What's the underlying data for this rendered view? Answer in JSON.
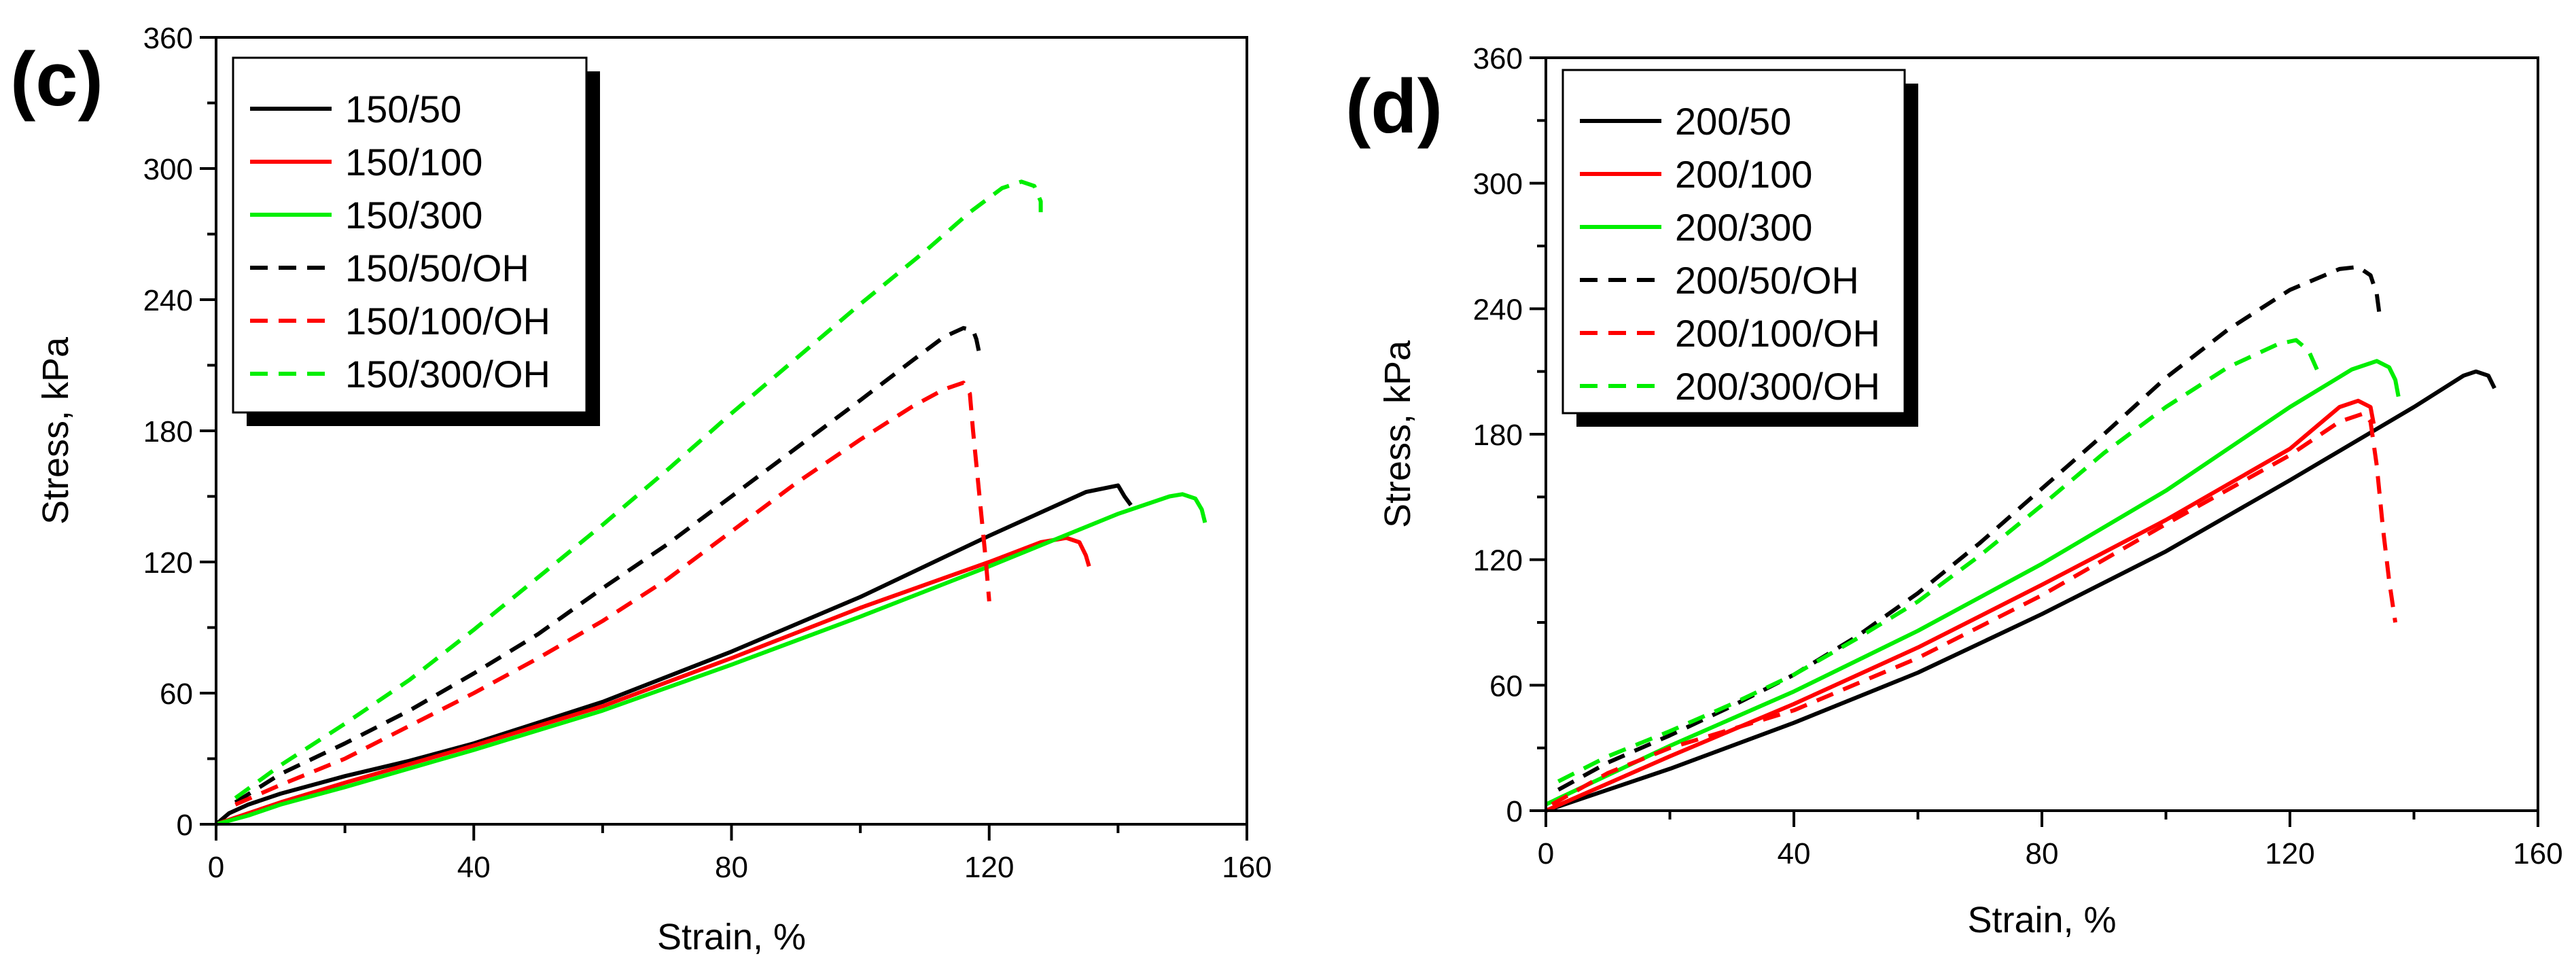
{
  "colors": {
    "black": "#000000",
    "red": "#ff0000",
    "green": "#00ee00"
  },
  "chart_data": [
    {
      "type": "line",
      "panel_label": "(c)",
      "xlabel": "Strain, %",
      "ylabel": "Stress, kPa",
      "xlim": [
        0,
        160
      ],
      "ylim": [
        0,
        360
      ],
      "xticks": [
        0,
        40,
        80,
        120,
        160
      ],
      "yticks": [
        0,
        60,
        120,
        180,
        240,
        300,
        360
      ],
      "legend_position": "top-left",
      "series": [
        {
          "name": "150/50",
          "color": "#000000",
          "dash": "solid",
          "points": [
            [
              0,
              0
            ],
            [
              2,
              5
            ],
            [
              5,
              9
            ],
            [
              10,
              14
            ],
            [
              20,
              22
            ],
            [
              30,
              29
            ],
            [
              40,
              37
            ],
            [
              60,
              56
            ],
            [
              80,
              79
            ],
            [
              100,
              104
            ],
            [
              120,
              132
            ],
            [
              135,
              152
            ],
            [
              140,
              155
            ],
            [
              141,
              150
            ],
            [
              142,
              146
            ]
          ]
        },
        {
          "name": "150/100",
          "color": "#ff0000",
          "dash": "solid",
          "points": [
            [
              0,
              0
            ],
            [
              5,
              5
            ],
            [
              10,
              10
            ],
            [
              20,
              19
            ],
            [
              40,
              36
            ],
            [
              60,
              54
            ],
            [
              80,
              76
            ],
            [
              100,
              99
            ],
            [
              120,
              120
            ],
            [
              128,
              129
            ],
            [
              132,
              131
            ],
            [
              134,
              129
            ],
            [
              135,
              123
            ],
            [
              135.5,
              118
            ]
          ]
        },
        {
          "name": "150/300",
          "color": "#00ee00",
          "dash": "solid",
          "points": [
            [
              0,
              0
            ],
            [
              5,
              4
            ],
            [
              10,
              9
            ],
            [
              20,
              17
            ],
            [
              40,
              34
            ],
            [
              60,
              52
            ],
            [
              80,
              73
            ],
            [
              100,
              95
            ],
            [
              120,
              118
            ],
            [
              140,
              142
            ],
            [
              148,
              150
            ],
            [
              150,
              151
            ],
            [
              152,
              149
            ],
            [
              153,
              144
            ],
            [
              153.5,
              138
            ]
          ]
        },
        {
          "name": "150/50/OH",
          "color": "#000000",
          "dash": "dashed",
          "points": [
            [
              3,
              10
            ],
            [
              10,
              23
            ],
            [
              20,
              37
            ],
            [
              30,
              52
            ],
            [
              40,
              69
            ],
            [
              50,
              87
            ],
            [
              60,
              108
            ],
            [
              70,
              128
            ],
            [
              80,
              150
            ],
            [
              90,
              172
            ],
            [
              100,
              194
            ],
            [
              108,
              212
            ],
            [
              113,
              223
            ],
            [
              116,
              227
            ],
            [
              117.5,
              226
            ],
            [
              118,
              222
            ],
            [
              118.5,
              215
            ]
          ]
        },
        {
          "name": "150/100/OH",
          "color": "#ff0000",
          "dash": "dashed",
          "points": [
            [
              3,
              9
            ],
            [
              10,
              18
            ],
            [
              20,
              30
            ],
            [
              30,
              45
            ],
            [
              40,
              60
            ],
            [
              50,
              76
            ],
            [
              60,
              93
            ],
            [
              70,
              112
            ],
            [
              80,
              134
            ],
            [
              90,
              156
            ],
            [
              100,
              176
            ],
            [
              108,
              191
            ],
            [
              113,
              199
            ],
            [
              116,
              202
            ],
            [
              117,
              197
            ],
            [
              117.5,
              180
            ],
            [
              118.5,
              150
            ],
            [
              119.5,
              120
            ],
            [
              120,
              102
            ]
          ]
        },
        {
          "name": "150/300/OH",
          "color": "#00ee00",
          "dash": "dashed",
          "points": [
            [
              3,
              12
            ],
            [
              10,
              27
            ],
            [
              20,
              46
            ],
            [
              30,
              66
            ],
            [
              40,
              89
            ],
            [
              50,
              113
            ],
            [
              60,
              137
            ],
            [
              70,
              162
            ],
            [
              80,
              188
            ],
            [
              90,
              213
            ],
            [
              100,
              238
            ],
            [
              110,
              262
            ],
            [
              117,
              280
            ],
            [
              122,
              291
            ],
            [
              125,
              294
            ],
            [
              127,
              292
            ],
            [
              128,
              285
            ],
            [
              128,
              280
            ]
          ]
        }
      ]
    },
    {
      "type": "line",
      "panel_label": "(d)",
      "xlabel": "Strain, %",
      "ylabel": "Stress, kPa",
      "xlim": [
        0,
        160
      ],
      "ylim": [
        0,
        360
      ],
      "xticks": [
        0,
        40,
        80,
        120,
        160
      ],
      "yticks": [
        0,
        60,
        120,
        180,
        240,
        300,
        360
      ],
      "legend_position": "top-left",
      "series": [
        {
          "name": "200/50",
          "color": "#000000",
          "dash": "solid",
          "points": [
            [
              0,
              0
            ],
            [
              10,
              10
            ],
            [
              20,
              20
            ],
            [
              40,
              42
            ],
            [
              60,
              66
            ],
            [
              80,
              94
            ],
            [
              100,
              124
            ],
            [
              120,
              158
            ],
            [
              140,
              193
            ],
            [
              148,
              208
            ],
            [
              150,
              210
            ],
            [
              152,
              208
            ],
            [
              153,
              202
            ]
          ]
        },
        {
          "name": "200/100",
          "color": "#ff0000",
          "dash": "solid",
          "points": [
            [
              0,
              0
            ],
            [
              10,
              13
            ],
            [
              20,
              26
            ],
            [
              40,
              51
            ],
            [
              60,
              78
            ],
            [
              80,
              108
            ],
            [
              100,
              139
            ],
            [
              120,
              173
            ],
            [
              128,
              193
            ],
            [
              131,
              196
            ],
            [
              133,
              193
            ],
            [
              133.5,
              185
            ]
          ]
        },
        {
          "name": "200/300",
          "color": "#00ee00",
          "dash": "solid",
          "points": [
            [
              0,
              3
            ],
            [
              10,
              17
            ],
            [
              20,
              31
            ],
            [
              40,
              57
            ],
            [
              60,
              86
            ],
            [
              80,
              118
            ],
            [
              100,
              153
            ],
            [
              120,
              193
            ],
            [
              130,
              211
            ],
            [
              134,
              215
            ],
            [
              136,
              212
            ],
            [
              137,
              206
            ],
            [
              137.5,
              198
            ]
          ]
        },
        {
          "name": "200/50/OH",
          "color": "#000000",
          "dash": "dashed",
          "points": [
            [
              2,
              10
            ],
            [
              10,
              23
            ],
            [
              20,
              36
            ],
            [
              30,
              50
            ],
            [
              40,
              65
            ],
            [
              50,
              83
            ],
            [
              60,
              104
            ],
            [
              70,
              128
            ],
            [
              80,
              154
            ],
            [
              90,
              180
            ],
            [
              100,
              207
            ],
            [
              110,
              230
            ],
            [
              120,
              249
            ],
            [
              128,
              259
            ],
            [
              131,
              260
            ],
            [
              133,
              256
            ],
            [
              134,
              247
            ],
            [
              134.5,
              236
            ]
          ]
        },
        {
          "name": "200/100/OH",
          "color": "#ff0000",
          "dash": "dashed",
          "points": [
            [
              1,
              3
            ],
            [
              10,
              18
            ],
            [
              20,
              30
            ],
            [
              40,
              48
            ],
            [
              60,
              73
            ],
            [
              80,
              103
            ],
            [
              100,
              137
            ],
            [
              120,
              170
            ],
            [
              128,
              186
            ],
            [
              132,
              190
            ],
            [
              133,
              186
            ],
            [
              134,
              165
            ],
            [
              135,
              135
            ],
            [
              136,
              110
            ],
            [
              137,
              90
            ]
          ]
        },
        {
          "name": "200/300/OH",
          "color": "#00ee00",
          "dash": "dashed",
          "points": [
            [
              2,
              14
            ],
            [
              10,
              26
            ],
            [
              20,
              38
            ],
            [
              30,
              51
            ],
            [
              40,
              65
            ],
            [
              50,
              82
            ],
            [
              60,
              100
            ],
            [
              70,
              122
            ],
            [
              80,
              146
            ],
            [
              90,
              171
            ],
            [
              100,
              193
            ],
            [
              110,
              212
            ],
            [
              118,
              223
            ],
            [
              121,
              225
            ],
            [
              123,
              220
            ],
            [
              124.5,
              210
            ]
          ]
        }
      ]
    }
  ]
}
